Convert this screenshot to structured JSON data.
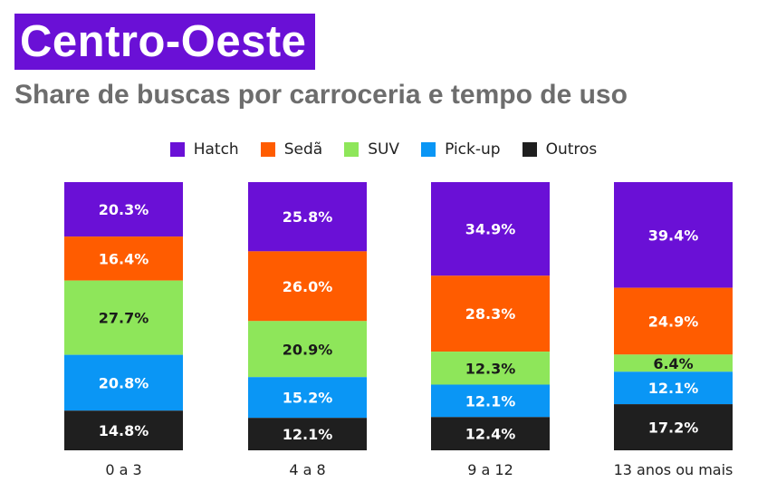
{
  "title": "Centro-Oeste",
  "subtitle": "Share de buscas por carroceria e tempo de uso",
  "colors": {
    "Hatch": "#6a10d6",
    "Sedã": "#ff5c00",
    "SUV": "#8ee65a",
    "Pick-up": "#0a96f5",
    "Outros": "#1f1f1f"
  },
  "chart_data": {
    "type": "bar",
    "stacked": true,
    "categories": [
      "0 a 3",
      "4 a 8",
      "9 a 12",
      "13 anos ou mais"
    ],
    "series": [
      {
        "name": "Hatch",
        "values": [
          20.3,
          25.8,
          34.9,
          39.4
        ],
        "labels": [
          "20.3%",
          "25.8%",
          "34.9%",
          "39.4%"
        ]
      },
      {
        "name": "Sedã",
        "values": [
          16.4,
          26.0,
          28.3,
          24.9
        ],
        "labels": [
          "16.4%",
          "26.0%",
          "28.3%",
          "24.9%"
        ]
      },
      {
        "name": "SUV",
        "values": [
          27.7,
          20.9,
          12.3,
          6.4
        ],
        "labels": [
          "27.7%",
          "20.9%",
          "12.3%",
          "6.4%"
        ]
      },
      {
        "name": "Pick-up",
        "values": [
          20.8,
          15.2,
          12.1,
          12.1
        ],
        "labels": [
          "20.8%",
          "15.2%",
          "12.1%",
          "12.1%"
        ]
      },
      {
        "name": "Outros",
        "values": [
          14.8,
          12.1,
          12.4,
          17.2
        ],
        "labels": [
          "14.8%",
          "12.1%",
          "12.4%",
          "17.2%"
        ]
      }
    ],
    "legend_position": "top",
    "grid": false,
    "ylim": [
      0,
      100
    ]
  }
}
